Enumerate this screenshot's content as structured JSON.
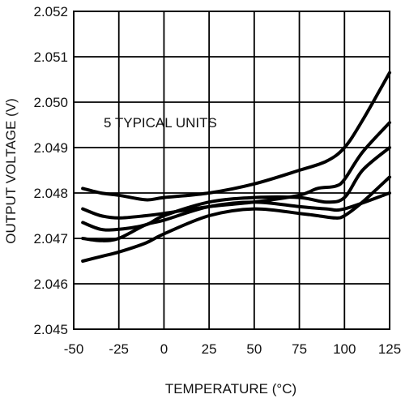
{
  "chart_data": {
    "type": "line",
    "xlabel": "TEMPERATURE (°C)",
    "ylabel": "OUTPUT VOLTAGE (V)",
    "annotation": "5 TYPICAL UNITS",
    "xlim": [
      -50,
      125
    ],
    "ylim": [
      2.045,
      2.052
    ],
    "x_ticks": [
      "-50",
      "-25",
      "0",
      "25",
      "50",
      "75",
      "100",
      "125"
    ],
    "y_ticks": [
      "2.045",
      "2.046",
      "2.047",
      "2.048",
      "2.049",
      "2.050",
      "2.051",
      "2.052"
    ],
    "grid": true,
    "legend": "none",
    "series": [
      {
        "x": [
          -45,
          -35,
          -25,
          -10,
          0,
          25,
          50,
          75,
          85,
          95,
          100,
          110,
          125
        ],
        "y": [
          2.0465,
          2.0466,
          2.0467,
          2.0469,
          2.0471,
          2.0475,
          2.04765,
          2.04755,
          2.0475,
          2.04745,
          2.0475,
          2.0478,
          2.04835
        ]
      },
      {
        "x": [
          -45,
          -35,
          -25,
          -10,
          0,
          25,
          50,
          75,
          90,
          100,
          125
        ],
        "y": [
          2.047,
          2.04695,
          2.047,
          2.0473,
          2.0474,
          2.0477,
          2.0478,
          2.0477,
          2.04765,
          2.04765,
          2.048
        ]
      },
      {
        "x": [
          -45,
          -35,
          -25,
          -10,
          0,
          25,
          50,
          75,
          90,
          100,
          110,
          125
        ],
        "y": [
          2.04735,
          2.0472,
          2.0472,
          2.0473,
          2.0475,
          2.0478,
          2.0479,
          2.0479,
          2.0478,
          2.0479,
          2.0485,
          2.049
        ]
      },
      {
        "x": [
          -45,
          -35,
          -25,
          -10,
          0,
          25,
          50,
          75,
          85,
          95,
          100,
          110,
          125
        ],
        "y": [
          2.04765,
          2.0475,
          2.04745,
          2.0475,
          2.04755,
          2.0477,
          2.0478,
          2.04795,
          2.0481,
          2.04815,
          2.0483,
          2.0489,
          2.04955
        ]
      },
      {
        "x": [
          -45,
          -35,
          -25,
          -10,
          0,
          25,
          50,
          75,
          90,
          100,
          110,
          125
        ],
        "y": [
          2.0481,
          2.048,
          2.04795,
          2.04785,
          2.0479,
          2.048,
          2.0482,
          2.0485,
          2.0487,
          2.049,
          2.0496,
          2.05065
        ]
      }
    ]
  }
}
